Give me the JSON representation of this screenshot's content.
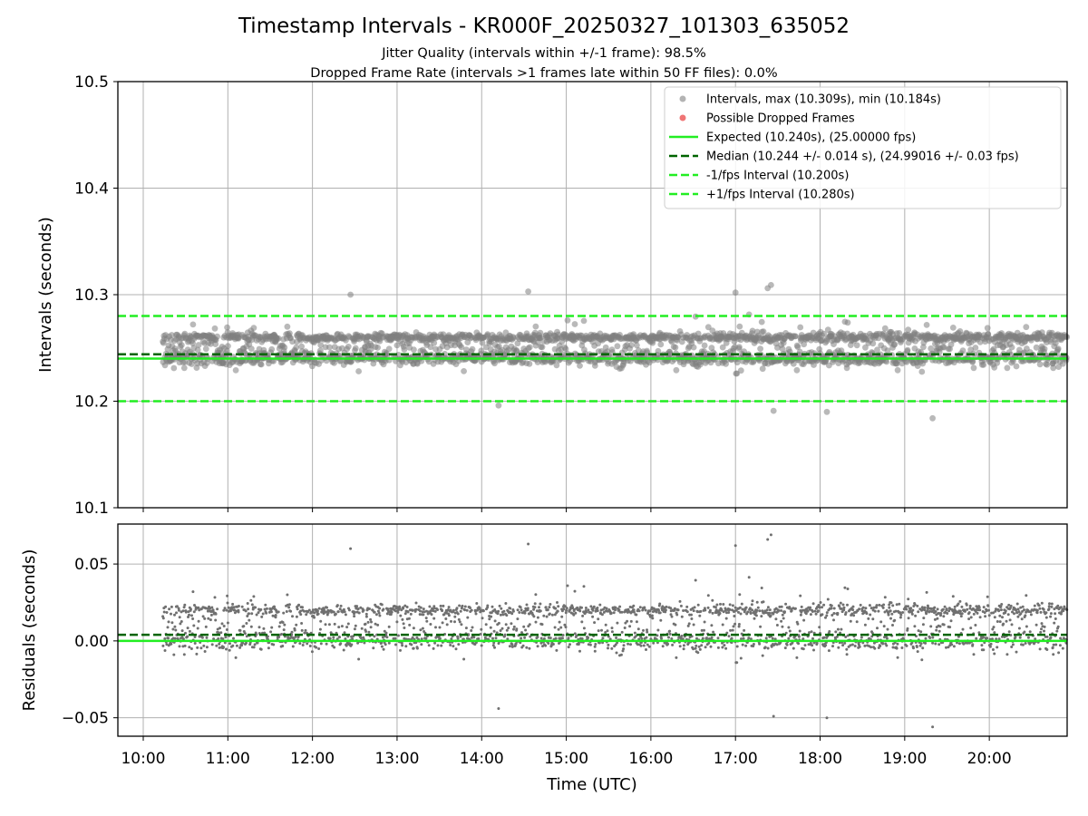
{
  "figure": {
    "title": "Timestamp Intervals - KR000F_20250327_101303_635052",
    "subtitle_1": "Jitter Quality (intervals within +/-1 frame): 98.5%",
    "subtitle_2": "Dropped Frame Rate (intervals >1 frames late within 50 FF files): 0.0%"
  },
  "chart_data": [
    {
      "type": "scatter",
      "title": "Timestamp Intervals - KR000F_20250327_101303_635052",
      "xlabel": "",
      "ylabel": "Intervals (seconds)",
      "xlim": [
        9.7,
        20.92
      ],
      "ylim": [
        10.1,
        10.5
      ],
      "yticks": [
        "10.1",
        "10.2",
        "10.3",
        "10.4",
        "10.5"
      ],
      "grid": true,
      "legend_position": "top-right",
      "series": [
        {
          "name": "Intervals, max (10.309s), min (10.184s)",
          "kind": "scatter",
          "color": "#808080",
          "x_range": [
            10.23,
            20.92
          ],
          "typical_band": [
            10.22,
            10.27
          ],
          "max": 10.309,
          "min": 10.184
        },
        {
          "name": "Possible Dropped Frames",
          "kind": "scatter",
          "color": "#ee6666",
          "points": []
        },
        {
          "name": "Expected (10.240s), (25.00000 fps)",
          "kind": "hline",
          "y": 10.24,
          "x_from": 9.7,
          "style": "solid",
          "color": "#22ee22"
        },
        {
          "name": "Median (10.244 +/- 0.014 s), (24.99016 +/- 0.03 fps)",
          "kind": "hline",
          "y": 10.244,
          "x_from": 9.7,
          "style": "dashed",
          "color": "#006400"
        },
        {
          "name": "-1/fps Interval (10.200s)",
          "kind": "hline",
          "y": 10.2,
          "x_from": 9.7,
          "style": "dashed",
          "color": "#22ee22"
        },
        {
          "name": "+1/fps Interval (10.280s)",
          "kind": "hline",
          "y": 10.28,
          "x_from": 9.7,
          "style": "dashed",
          "color": "#22ee22"
        }
      ]
    },
    {
      "type": "scatter",
      "xlabel": "Time (UTC)",
      "ylabel": "Residuals (seconds)",
      "xlim": [
        9.7,
        20.92
      ],
      "ylim": [
        -0.062,
        0.076
      ],
      "xticks": [
        "10:00",
        "11:00",
        "12:00",
        "13:00",
        "14:00",
        "15:00",
        "16:00",
        "17:00",
        "18:00",
        "19:00",
        "20:00"
      ],
      "xtick_values": [
        10,
        11,
        12,
        13,
        14,
        15,
        16,
        17,
        18,
        19,
        20
      ],
      "yticks": [
        "0.05",
        "0.00",
        "−0.05"
      ],
      "ytick_values": [
        0.05,
        0.0,
        -0.05
      ],
      "grid": true,
      "series": [
        {
          "name": "",
          "kind": "scatter",
          "color": "#707070",
          "x_range": [
            10.23,
            20.92
          ],
          "max": 0.069,
          "min": -0.056
        },
        {
          "name": "",
          "kind": "hline",
          "y": 0.0,
          "style": "solid",
          "color": "#22ee22"
        },
        {
          "name": "",
          "kind": "hline",
          "y": 0.004,
          "style": "dashed",
          "color": "#006400"
        }
      ]
    }
  ]
}
